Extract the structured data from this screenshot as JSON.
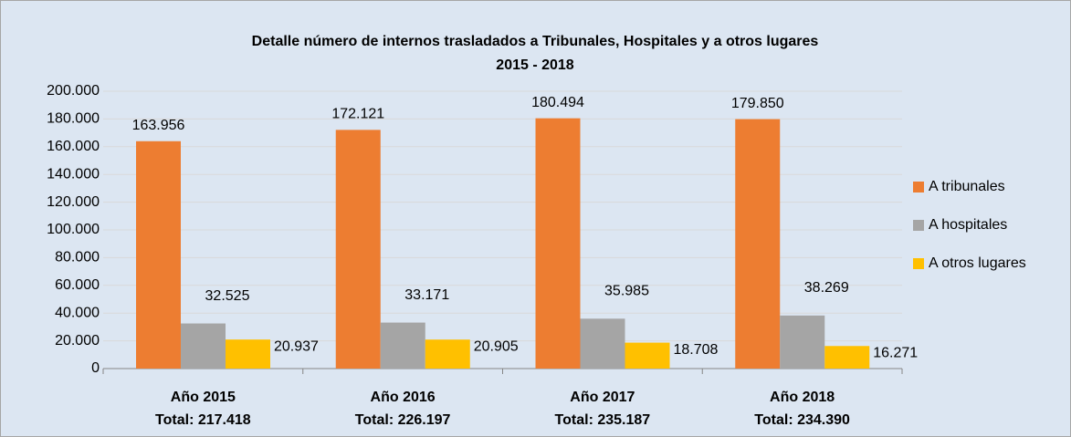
{
  "chart_data": {
    "type": "bar",
    "title": "Detalle número de internos trasladados a Tribunales, Hospitales y a otros lugares",
    "subtitle": "2015 - 2018",
    "categories": [
      "Año 2015",
      "Año 2016",
      "Año 2017",
      "Año 2018"
    ],
    "category_totals": [
      "Total: 217.418",
      "Total: 226.197",
      "Total: 235.187",
      "Total: 234.390"
    ],
    "series": [
      {
        "name": "A tribunales",
        "color": "#ed7d31",
        "values": [
          163956,
          172121,
          180494,
          179850
        ],
        "value_labels": [
          "163.956",
          "172.121",
          "180.494",
          "179.850"
        ]
      },
      {
        "name": "A hospitales",
        "color": "#a5a5a5",
        "values": [
          32525,
          33171,
          35985,
          38269
        ],
        "value_labels": [
          "32.525",
          "33.171",
          "35.985",
          "38.269"
        ]
      },
      {
        "name": "A otros lugares",
        "color": "#ffc000",
        "values": [
          20937,
          20905,
          18708,
          16271
        ],
        "value_labels": [
          "20.937",
          "20.905",
          "18.708",
          "16.271"
        ]
      }
    ],
    "ylim": [
      0,
      200000
    ],
    "yticks": [
      0,
      {
        "value": 20000,
        "label": "20.000"
      },
      {
        "value": 40000,
        "label": "40.000"
      },
      {
        "value": 60000,
        "label": "60.000"
      },
      {
        "value": 80000,
        "label": "80.000"
      },
      {
        "value": 100000,
        "label": "100.000"
      },
      {
        "value": 120000,
        "label": "120.000"
      },
      {
        "value": 140000,
        "label": "140.000"
      },
      {
        "value": 160000,
        "label": "160.000"
      },
      {
        "value": 180000,
        "label": "180.000"
      },
      {
        "value": 200000,
        "label": "200.000"
      }
    ],
    "grid": true,
    "legend": "right"
  }
}
